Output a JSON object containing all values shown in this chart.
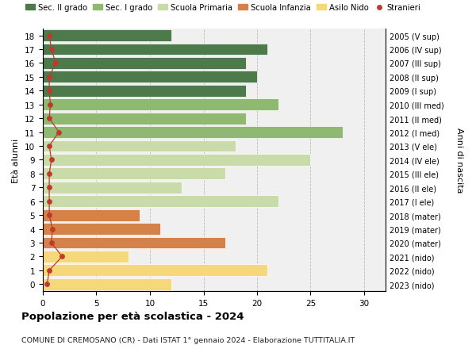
{
  "ages": [
    0,
    1,
    2,
    3,
    4,
    5,
    6,
    7,
    8,
    9,
    10,
    11,
    12,
    13,
    14,
    15,
    16,
    17,
    18
  ],
  "right_labels": [
    "2023 (nido)",
    "2022 (nido)",
    "2021 (nido)",
    "2020 (mater)",
    "2019 (mater)",
    "2018 (mater)",
    "2017 (I ele)",
    "2016 (II ele)",
    "2015 (III ele)",
    "2014 (IV ele)",
    "2013 (V ele)",
    "2012 (I med)",
    "2011 (II med)",
    "2010 (III med)",
    "2009 (I sup)",
    "2008 (II sup)",
    "2007 (III sup)",
    "2006 (IV sup)",
    "2005 (V sup)"
  ],
  "bar_values": [
    12,
    21,
    8,
    17,
    11,
    9,
    22,
    13,
    17,
    25,
    18,
    28,
    19,
    22,
    19,
    20,
    19,
    21,
    12
  ],
  "bar_colors": [
    "#f5d87a",
    "#f5d87a",
    "#f5d87a",
    "#d4824a",
    "#d4824a",
    "#d4824a",
    "#c8dba8",
    "#c8dba8",
    "#c8dba8",
    "#c8dba8",
    "#c8dba8",
    "#8fb870",
    "#8fb870",
    "#8fb870",
    "#4d7a4a",
    "#4d7a4a",
    "#4d7a4a",
    "#4d7a4a",
    "#4d7a4a"
  ],
  "stranieri_x": [
    0.4,
    0.6,
    1.8,
    0.8,
    0.9,
    0.6,
    0.6,
    0.6,
    0.6,
    0.8,
    0.6,
    1.5,
    0.6,
    0.7,
    0.6,
    0.6,
    1.2,
    0.8,
    0.6
  ],
  "legend_labels": [
    "Sec. II grado",
    "Sec. I grado",
    "Scuola Primaria",
    "Scuola Infanzia",
    "Asilo Nido",
    "Stranieri"
  ],
  "legend_colors": [
    "#4d7a4a",
    "#8fb870",
    "#c8dba8",
    "#d4824a",
    "#f5d87a",
    "#c0392b"
  ],
  "ylabel": "Età alunni",
  "right_ylabel": "Anni di nascita",
  "title": "Popolazione per età scolastica - 2024",
  "subtitle": "COMUNE DI CREMOSANO (CR) - Dati ISTAT 1° gennaio 2024 - Elaborazione TUTTITALIA.IT",
  "xlim": [
    0,
    32
  ],
  "bg_color": "#f0f0f0"
}
